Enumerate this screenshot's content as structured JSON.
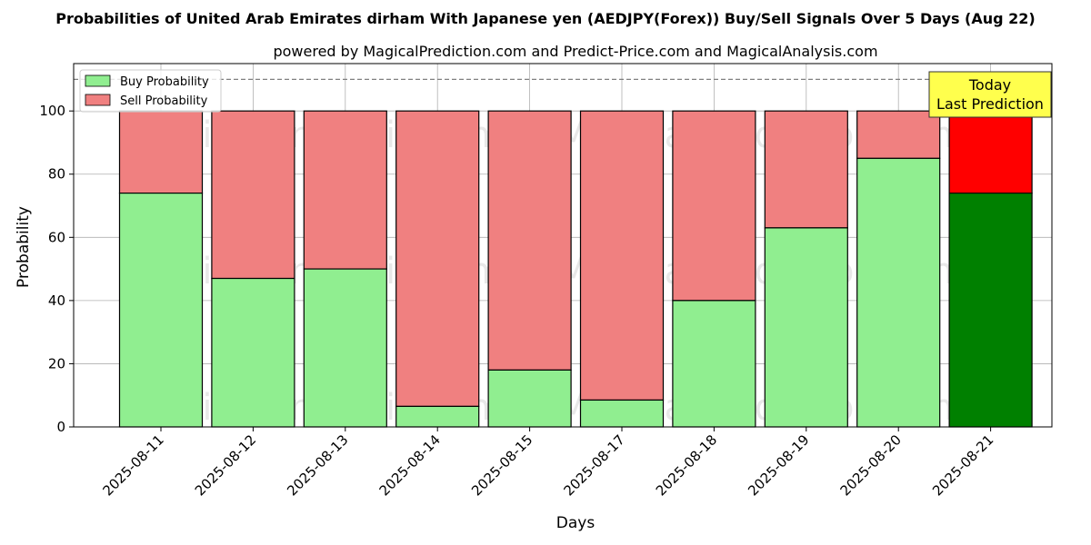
{
  "chart_data": {
    "type": "bar",
    "stacked": true,
    "title": "Probabilities of United Arab Emirates dirham With Japanese yen (AEDJPY(Forex)) Buy/Sell Signals Over 5 Days (Aug 22)",
    "subtitle": "powered by MagicalPrediction.com and Predict-Price.com and MagicalAnalysis.com",
    "xlabel": "Days",
    "ylabel": "Probability",
    "ylim": [
      0,
      115
    ],
    "yticks": [
      0,
      20,
      40,
      60,
      80,
      100
    ],
    "reference_line": 110,
    "grid": true,
    "legend_position": "top-left",
    "categories": [
      "2025-08-11",
      "2025-08-12",
      "2025-08-13",
      "2025-08-14",
      "2025-08-15",
      "2025-08-17",
      "2025-08-18",
      "2025-08-19",
      "2025-08-20",
      "2025-08-21"
    ],
    "series": [
      {
        "name": "Buy Probability",
        "values": [
          74,
          47,
          50,
          6.5,
          18,
          8.5,
          40,
          63,
          85,
          74
        ],
        "color": "#90ee90",
        "highlight_color": "#008000"
      },
      {
        "name": "Sell Probability",
        "values": [
          26,
          53,
          50,
          93.5,
          82,
          91.5,
          60,
          37,
          15,
          26
        ],
        "color": "#f08080",
        "highlight_color": "#ff0000"
      }
    ],
    "highlight_index": 9,
    "annotation": {
      "line1": "Today",
      "line2": "Last Prediction",
      "background": "#ffff4d"
    },
    "watermarks": [
      "MagicalAnalysis.com",
      "MagicalPrediction.com"
    ]
  }
}
